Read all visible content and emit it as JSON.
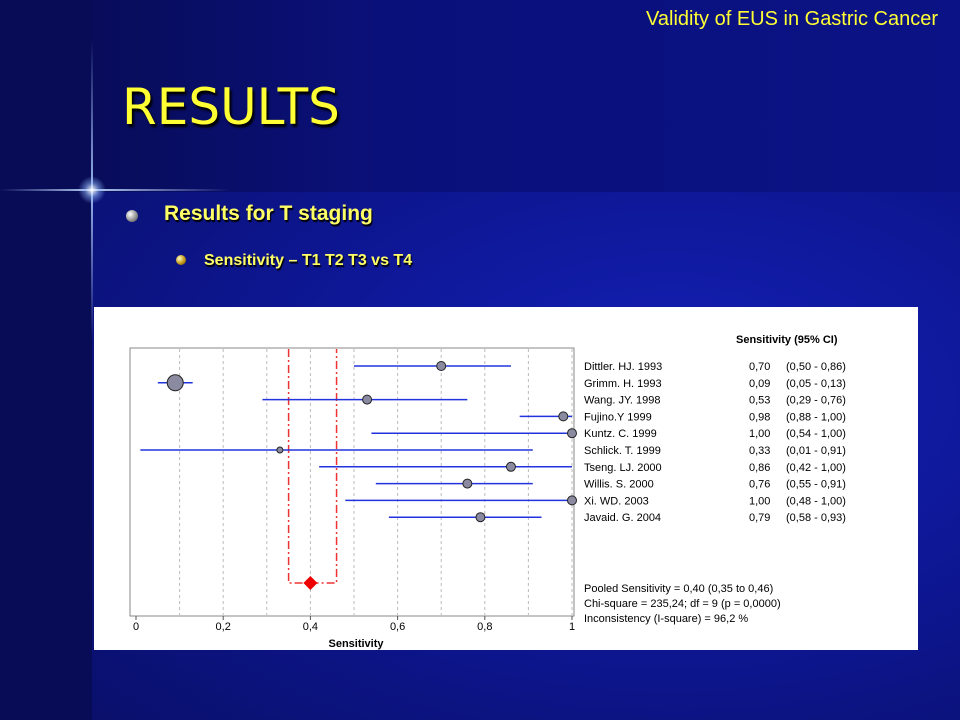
{
  "slide": {
    "subtitle": "Validity of EUS in Gastric Cancer",
    "title": "RESULTS",
    "bullet1": "Results for T staging",
    "bullet2": "Sensitivity – T1 T2 T3 vs  T4"
  },
  "colors": {
    "title_yellow": "#ffff33",
    "background_blue": "#0d1690",
    "ci_line": "#2233dd",
    "pooled_diamond": "#ee0000",
    "pooled_ci_line": "#ee3333"
  },
  "chart_data": {
    "type": "forest",
    "column_header": "Sensitivity (95% CI)",
    "xlabel": "Sensitivity",
    "xlim": [
      0,
      1
    ],
    "xticks": [
      "0",
      "0,2",
      "0,4",
      "0,6",
      "0,8",
      "1"
    ],
    "grid": "vertical dotted",
    "studies": [
      {
        "name": "Dittler. HJ. 1993",
        "value": 0.7,
        "lo": 0.5,
        "hi": 0.86,
        "label": "0,70",
        "ci": "(0,50 - 0,86)"
      },
      {
        "name": "Grimm. H. 1993",
        "value": 0.09,
        "lo": 0.05,
        "hi": 0.13,
        "label": "0,09",
        "ci": "(0,05 - 0,13)"
      },
      {
        "name": "Wang. JY. 1998",
        "value": 0.53,
        "lo": 0.29,
        "hi": 0.76,
        "label": "0,53",
        "ci": "(0,29 - 0,76)"
      },
      {
        "name": "Fujino.Y 1999",
        "value": 0.98,
        "lo": 0.88,
        "hi": 1.0,
        "label": "0,98",
        "ci": "(0,88 - 1,00)"
      },
      {
        "name": "Kuntz. C. 1999",
        "value": 1.0,
        "lo": 0.54,
        "hi": 1.0,
        "label": "1,00",
        "ci": "(0,54 - 1,00)"
      },
      {
        "name": "Schlick. T. 1999",
        "value": 0.33,
        "lo": 0.01,
        "hi": 0.91,
        "label": "0,33",
        "ci": "(0,01 - 0,91)"
      },
      {
        "name": "Tseng. LJ. 2000",
        "value": 0.86,
        "lo": 0.42,
        "hi": 1.0,
        "label": "0,86",
        "ci": "(0,42 - 1,00)"
      },
      {
        "name": "Willis. S. 2000",
        "value": 0.76,
        "lo": 0.55,
        "hi": 0.91,
        "label": "0,76",
        "ci": "(0,55 - 0,91)"
      },
      {
        "name": "Xi. WD. 2003",
        "value": 1.0,
        "lo": 0.48,
        "hi": 1.0,
        "label": "1,00",
        "ci": "(0,48 - 1,00)"
      },
      {
        "name": "Javaid. G. 2004",
        "value": 0.79,
        "lo": 0.58,
        "hi": 0.93,
        "label": "0,79",
        "ci": "(0,58 - 0,93)"
      }
    ],
    "pooled": {
      "value": 0.4,
      "lo": 0.35,
      "hi": 0.46
    },
    "summary_lines": [
      "Pooled Sensitivity = 0,40 (0,35 to 0,46)",
      "Chi-square = 235,24; df =  9 (p = 0,0000)",
      "Inconsistency (I-square) = 96,2 %"
    ]
  }
}
